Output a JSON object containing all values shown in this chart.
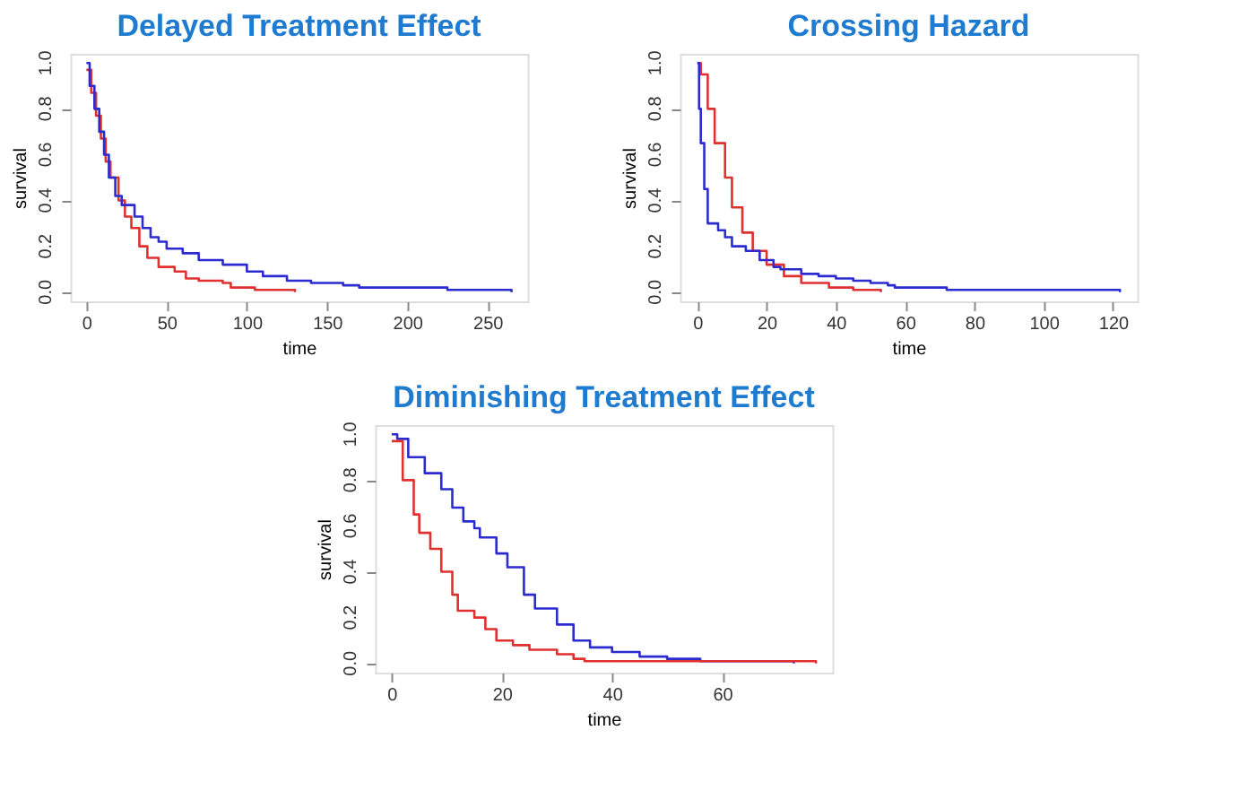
{
  "chart_data": [
    {
      "type": "step",
      "title": "Delayed Treatment  Effect",
      "xlabel": "time",
      "ylabel": "survival",
      "xlim": [
        -10,
        275
      ],
      "xticks": [
        0,
        50,
        100,
        150,
        200,
        250
      ],
      "ylim": [
        -0.04,
        1.04
      ],
      "yticks": [
        {
          "value": 0,
          "label": "0.0"
        },
        {
          "value": 0.2,
          "label": "0.2"
        },
        {
          "value": 0.4,
          "label": "0.4"
        },
        {
          "value": 0.6,
          "label": "0.6"
        },
        {
          "value": 0.8,
          "label": "0.8"
        },
        {
          "value": 1,
          "label": "1.0"
        }
      ],
      "series": [
        {
          "color": "#e03030",
          "x": [
            0,
            3,
            6,
            9,
            12,
            15,
            20,
            24,
            28,
            33,
            38,
            45,
            55,
            62,
            70,
            85,
            90,
            105,
            130
          ],
          "values": [
            0.97,
            0.87,
            0.77,
            0.67,
            0.57,
            0.5,
            0.4,
            0.33,
            0.28,
            0.2,
            0.15,
            0.11,
            0.09,
            0.06,
            0.05,
            0.04,
            0.02,
            0.01,
            0.0
          ]
        },
        {
          "color": "#2b2bd0",
          "x": [
            0,
            2,
            5,
            8,
            11,
            14,
            18,
            22,
            30,
            35,
            40,
            45,
            50,
            60,
            70,
            85,
            100,
            110,
            125,
            140,
            160,
            170,
            225,
            265
          ],
          "values": [
            1.0,
            0.9,
            0.8,
            0.7,
            0.6,
            0.5,
            0.42,
            0.38,
            0.33,
            0.28,
            0.24,
            0.22,
            0.19,
            0.17,
            0.14,
            0.12,
            0.09,
            0.07,
            0.05,
            0.04,
            0.03,
            0.02,
            0.01,
            0.0
          ]
        }
      ]
    },
    {
      "type": "step",
      "title": "Crossing Hazard",
      "xlabel": "time",
      "ylabel": "survival",
      "xlim": [
        -5,
        127
      ],
      "xticks": [
        0,
        20,
        40,
        60,
        80,
        100,
        120
      ],
      "ylim": [
        -0.04,
        1.04
      ],
      "yticks": [
        {
          "value": 0,
          "label": "0.0"
        },
        {
          "value": 0.2,
          "label": "0.2"
        },
        {
          "value": 0.4,
          "label": "0.4"
        },
        {
          "value": 0.6,
          "label": "0.6"
        },
        {
          "value": 0.8,
          "label": "0.8"
        },
        {
          "value": 1,
          "label": "1.0"
        }
      ],
      "series": [
        {
          "color": "#e03030",
          "x": [
            0,
            1,
            3,
            5,
            8,
            10,
            13,
            16,
            20,
            25,
            30,
            38,
            45,
            53
          ],
          "values": [
            1.0,
            0.95,
            0.8,
            0.65,
            0.5,
            0.37,
            0.26,
            0.18,
            0.12,
            0.07,
            0.04,
            0.02,
            0.01,
            0.0
          ]
        },
        {
          "color": "#2b2bd0",
          "x": [
            0,
            0.5,
            1,
            2,
            3,
            6,
            8,
            10,
            14,
            18,
            22,
            24,
            30,
            35,
            40,
            45,
            50,
            55,
            57,
            72,
            122
          ],
          "values": [
            1.0,
            0.8,
            0.65,
            0.45,
            0.3,
            0.27,
            0.24,
            0.2,
            0.18,
            0.14,
            0.11,
            0.1,
            0.08,
            0.07,
            0.06,
            0.05,
            0.04,
            0.03,
            0.02,
            0.01,
            0.0
          ]
        }
      ]
    },
    {
      "type": "step",
      "title": "Diminishing Treatment  Effect",
      "xlabel": "time",
      "ylabel": "survival",
      "xlim": [
        -3,
        80
      ],
      "xticks": [
        0,
        20,
        40,
        60
      ],
      "ylim": [
        -0.04,
        1.04
      ],
      "yticks": [
        {
          "value": 0,
          "label": "0.0"
        },
        {
          "value": 0.2,
          "label": "0.2"
        },
        {
          "value": 0.4,
          "label": "0.4"
        },
        {
          "value": 0.6,
          "label": "0.6"
        },
        {
          "value": 0.8,
          "label": "0.8"
        },
        {
          "value": 1,
          "label": "1.0"
        }
      ],
      "series": [
        {
          "color": "#2b2bd0",
          "x": [
            0,
            1,
            3,
            6,
            9,
            11,
            13,
            15,
            16,
            19,
            21,
            24,
            26,
            30,
            33,
            36,
            40,
            45,
            50,
            56,
            73
          ],
          "values": [
            1.0,
            0.98,
            0.9,
            0.83,
            0.76,
            0.68,
            0.62,
            0.59,
            0.55,
            0.48,
            0.42,
            0.3,
            0.24,
            0.17,
            0.1,
            0.07,
            0.05,
            0.03,
            0.02,
            0.01,
            0.0
          ]
        },
        {
          "color": "#e03030",
          "x": [
            0,
            2,
            4,
            5,
            7,
            9,
            11,
            12,
            15,
            17,
            19,
            22,
            25,
            30,
            33,
            35,
            77
          ],
          "values": [
            0.97,
            0.8,
            0.65,
            0.57,
            0.5,
            0.4,
            0.3,
            0.23,
            0.2,
            0.15,
            0.1,
            0.08,
            0.06,
            0.04,
            0.02,
            0.01,
            0.0
          ]
        }
      ]
    }
  ]
}
